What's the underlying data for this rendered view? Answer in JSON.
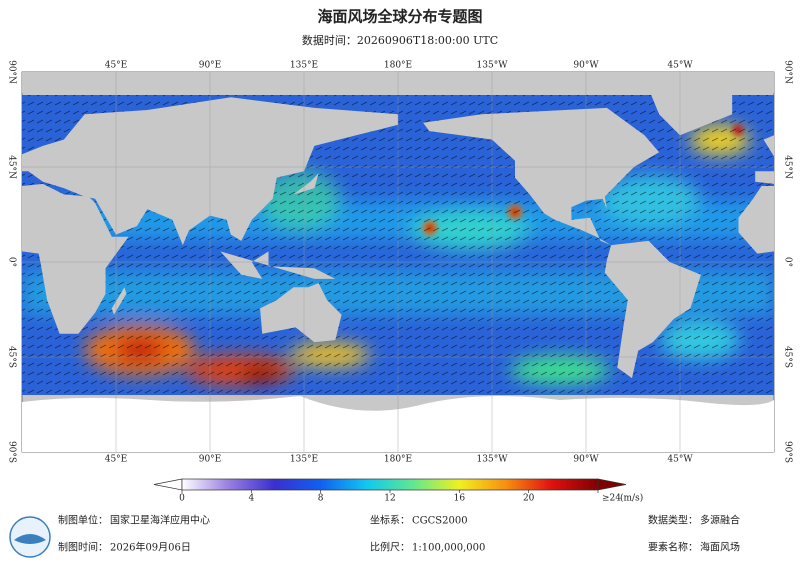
{
  "header": {
    "title": "海面风场全球分布专题图",
    "subtitle": "数据时间：20260906T18:00:00 UTC"
  },
  "map": {
    "lon_labels": [
      "45°E",
      "90°E",
      "135°E",
      "180°E",
      "135°W",
      "90°W",
      "45°W"
    ],
    "lat_labels": [
      "90°N",
      "45°N",
      "0°",
      "45°S",
      "90°S"
    ]
  },
  "colorbar": {
    "ticks": [
      0,
      4,
      8,
      12,
      16,
      20,
      {
        "value": 24,
        "label": "≥24"
      }
    ],
    "unit": "(m/s)",
    "colors": [
      "#ffffff",
      "#9a7fe0",
      "#3a2fd0",
      "#1060f0",
      "#10c8f0",
      "#60e890",
      "#f0f020",
      "#f89010",
      "#e01010",
      "#800000"
    ]
  },
  "footer": {
    "unit_label": "制图单位：",
    "unit": "国家卫星海洋应用中心",
    "date_label": "制图时间：",
    "date": "2026年09月06日",
    "crs_label": "坐标系：",
    "crs": "CGCS2000",
    "scale_label": "比例尺：",
    "scale": "1:100,000,000",
    "dtype_label": "数据类型：",
    "dtype": "多源融合",
    "element_label": "要素名称：",
    "element": "海面风场"
  }
}
